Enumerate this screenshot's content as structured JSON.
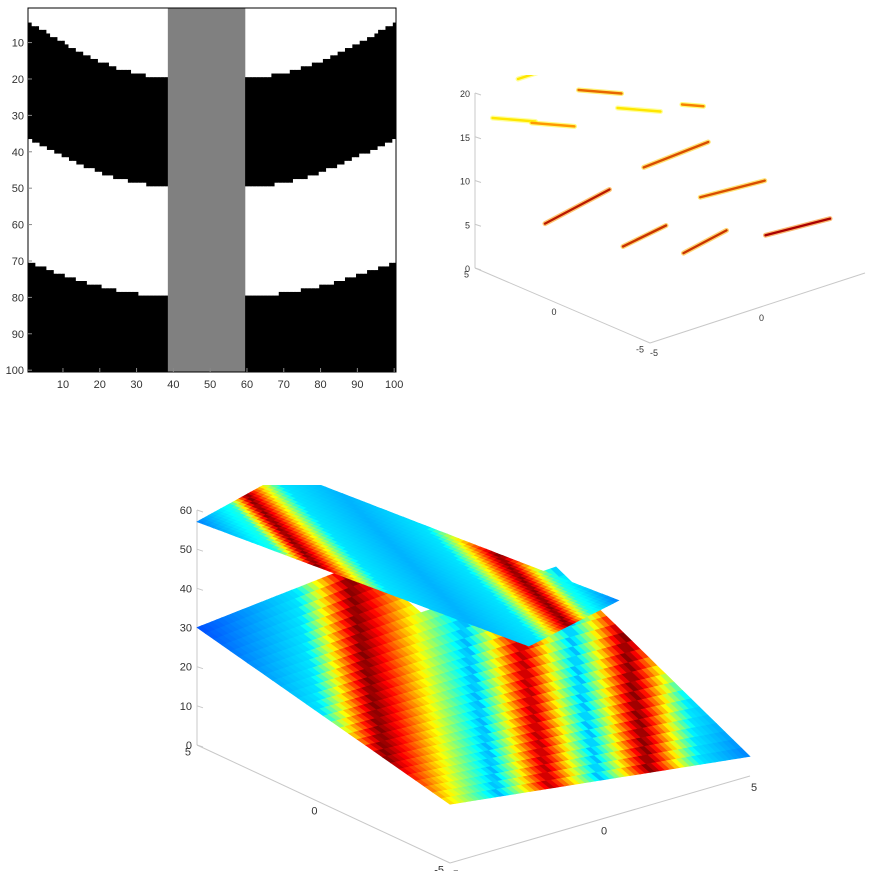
{
  "chart_data": [
    {
      "type": "heatmap",
      "xlim": [
        1,
        100
      ],
      "ylim": [
        1,
        100
      ],
      "xticks": [
        "10",
        "20",
        "30",
        "40",
        "50",
        "60",
        "70",
        "80",
        "90",
        "100"
      ],
      "yticks": [
        "10",
        "20",
        "30",
        "40",
        "50",
        "60",
        "70",
        "80",
        "90",
        "100"
      ],
      "y_axis_direction": "top-to-bottom",
      "colors": {
        "black": "#000000",
        "white": "#ffffff",
        "gray": "#808080"
      },
      "gray_band_columns": [
        39,
        60
      ],
      "left_region": {
        "x_range": [
          1,
          39
        ],
        "boundaries_at_edge": [
          5,
          37,
          71
        ],
        "boundaries_at_band": [
          20,
          50,
          80
        ]
      },
      "right_region": {
        "x_range": [
          60,
          100
        ],
        "boundaries_at_edge": [
          5,
          37,
          71
        ],
        "boundaries_at_band": [
          20,
          50,
          80
        ]
      },
      "stripe_order_from_top": [
        "white",
        "black",
        "white",
        "black"
      ]
    },
    {
      "type": "scatter",
      "projection": "3d",
      "zticks": [
        "0",
        "5",
        "10",
        "15",
        "20"
      ],
      "yticks": [
        "5",
        "0",
        "-5"
      ],
      "xticks": [
        "-5",
        "0"
      ],
      "zlim": [
        0,
        20
      ],
      "x_range": [
        -5,
        5
      ],
      "y_range": [
        -5,
        5
      ],
      "colormap": "hot",
      "segments": [
        {
          "p1": [
            -5.0,
            1.0,
            8.5
          ],
          "p2": [
            -2.0,
            1.0,
            10.0
          ],
          "level": 0.15
        },
        {
          "p1": [
            -3.0,
            -1.0,
            6.0
          ],
          "p2": [
            -1.0,
            -1.0,
            6.8
          ],
          "level": 0.2
        },
        {
          "p1": [
            -1.0,
            -2.0,
            4.5
          ],
          "p2": [
            1.0,
            -2.0,
            5.5
          ],
          "level": 0.2
        },
        {
          "p1": [
            0.0,
            1.5,
            10.5
          ],
          "p2": [
            3.0,
            1.5,
            11.0
          ],
          "level": 0.25
        },
        {
          "p1": [
            1.0,
            -0.5,
            8.0
          ],
          "p2": [
            4.0,
            -0.5,
            7.5
          ],
          "level": 0.25
        },
        {
          "p1": [
            2.0,
            -3.0,
            5.0
          ],
          "p2": [
            5.0,
            -3.0,
            4.5
          ],
          "level": 0.1
        },
        {
          "p1": [
            -3.0,
            5.0,
            20.0
          ],
          "p2": [
            -2.0,
            5.0,
            20.0
          ],
          "level": 0.55
        },
        {
          "p1": [
            -5.0,
            4.0,
            18.0
          ],
          "p2": [
            -3.0,
            4.0,
            16.0
          ],
          "level": 0.55
        },
        {
          "p1": [
            -4.0,
            3.0,
            17.5
          ],
          "p2": [
            -2.0,
            3.0,
            15.5
          ],
          "level": 0.4
        },
        {
          "p1": [
            -1.0,
            4.0,
            18.0
          ],
          "p2": [
            1.0,
            4.0,
            16.0
          ],
          "level": 0.3
        },
        {
          "p1": [
            0.0,
            3.0,
            16.0
          ],
          "p2": [
            2.0,
            3.0,
            14.0
          ],
          "level": 0.55
        },
        {
          "p1": [
            3.0,
            3.0,
            14.0
          ],
          "p2": [
            4.0,
            3.0,
            13.0
          ],
          "level": 0.35
        }
      ]
    },
    {
      "type": "heatmap",
      "projection": "3d",
      "zticks": [
        "0",
        "10",
        "20",
        "30",
        "40",
        "50",
        "60"
      ],
      "yticks": [
        "5",
        "0",
        "-5"
      ],
      "xticks": [
        "-5",
        "0",
        "5"
      ],
      "zlim": [
        0,
        60
      ],
      "x_range": [
        -5,
        5
      ],
      "y_range": [
        -5,
        5
      ],
      "colormap": "jet",
      "surfaces": [
        {
          "name": "lower",
          "corners": [
            [
              -5,
              5,
              30
            ],
            [
              -5,
              -5,
              15
            ],
            [
              5,
              -5,
              5
            ],
            [
              5,
              5,
              38
            ]
          ],
          "profile_x": [
            0.0,
            0.2,
            0.3,
            0.5,
            0.6,
            0.7,
            0.8,
            0.9,
            1.0
          ],
          "profile_v": [
            0.2,
            0.35,
            1.0,
            0.3,
            0.95,
            0.3,
            1.0,
            0.35,
            0.25
          ],
          "cutout": {
            "from_x": 0.55,
            "from_y": 0.75,
            "note": "upper-right region absent"
          }
        },
        {
          "name": "upper",
          "corners": [
            [
              -5,
              5,
              57
            ],
            [
              -2,
              5,
              63
            ],
            [
              4,
              -1,
              35
            ],
            [
              1,
              -1,
              30
            ]
          ],
          "profile_x": [
            0.0,
            0.15,
            0.22,
            0.35,
            0.5,
            0.65,
            0.78,
            0.88,
            1.0
          ],
          "profile_v": [
            0.25,
            0.4,
            1.0,
            0.35,
            0.3,
            0.35,
            1.0,
            0.4,
            0.25
          ]
        }
      ]
    }
  ]
}
